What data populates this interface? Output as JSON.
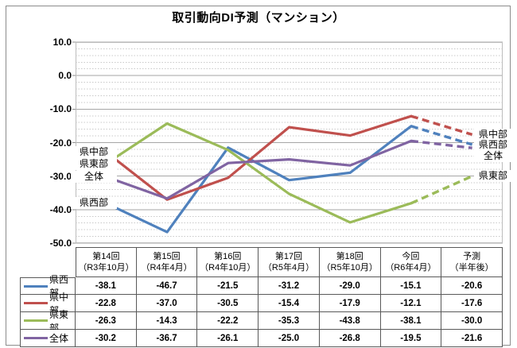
{
  "title": "取引動向DI予測（マンション）",
  "y_axis": {
    "labels": [
      "10.0",
      "0.0",
      "-10.0",
      "-20.0",
      "-30.0",
      "-40.0",
      "-50.0"
    ]
  },
  "chart_data": {
    "type": "line",
    "title": "取引動向DI予測（マンション）",
    "categories": [
      "第14回（R3年10月）",
      "第15回（R4年4月）",
      "第16回（R4年10月）",
      "第17回（R5年4月）",
      "第18回（R5年10月）",
      "今回（R6年4月）",
      "予測（半年後）"
    ],
    "categories_two_line": [
      [
        "第14回",
        "（R3年10月）"
      ],
      [
        "第15回",
        "（R4年4月）"
      ],
      [
        "第16回",
        "（R4年10月）"
      ],
      [
        "第17回",
        "（R5年4月）"
      ],
      [
        "第18回",
        "（R5年10月）"
      ],
      [
        "今回",
        "（R6年4月）"
      ],
      [
        "予測",
        "（半年後）"
      ]
    ],
    "ylim": [
      -50,
      10
    ],
    "y_major_step": 10,
    "y_minor_step": 2,
    "grid": true,
    "legend_position": "table-left-column",
    "last_segment_style": "dashed",
    "series": [
      {
        "name": "県西部",
        "key": "west",
        "color": "#4F81BD",
        "values": [
          -38.1,
          -46.7,
          -21.5,
          -31.2,
          -29.0,
          -15.1,
          -20.6
        ]
      },
      {
        "name": "県中部",
        "key": "central",
        "color": "#C0504D",
        "values": [
          -22.8,
          -37.0,
          -30.5,
          -15.4,
          -17.9,
          -12.1,
          -17.6
        ]
      },
      {
        "name": "県東部",
        "key": "east",
        "color": "#9BBB59",
        "values": [
          -26.3,
          -14.3,
          -22.2,
          -35.3,
          -43.8,
          -38.1,
          -30.0
        ]
      },
      {
        "name": "全体",
        "key": "overall",
        "color": "#8064A2",
        "values": [
          -30.2,
          -36.7,
          -26.1,
          -25.0,
          -26.8,
          -19.5,
          -21.6
        ]
      }
    ]
  }
}
